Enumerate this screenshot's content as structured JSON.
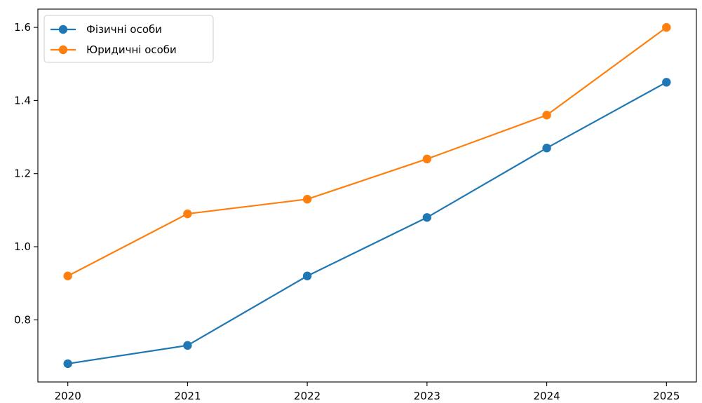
{
  "chart_data": {
    "type": "line",
    "title": "",
    "xlabel": "",
    "ylabel": "",
    "x": [
      2020,
      2021,
      2022,
      2023,
      2024,
      2025
    ],
    "xticks": [
      "2020",
      "2021",
      "2022",
      "2023",
      "2024",
      "2025"
    ],
    "yticks": [
      "0.8",
      "1.0",
      "1.2",
      "1.4",
      "1.6"
    ],
    "ylim": [
      0.63,
      1.65
    ],
    "grid": false,
    "legend_position": "top-left",
    "series": [
      {
        "name": "Фізичні особи",
        "color": "#1f77b4",
        "marker": "circle",
        "values": [
          0.68,
          0.73,
          0.92,
          1.08,
          1.27,
          1.45
        ]
      },
      {
        "name": "Юридичні особи",
        "color": "#ff7f0e",
        "marker": "circle",
        "values": [
          0.92,
          1.09,
          1.13,
          1.24,
          1.36,
          1.6
        ]
      }
    ]
  }
}
